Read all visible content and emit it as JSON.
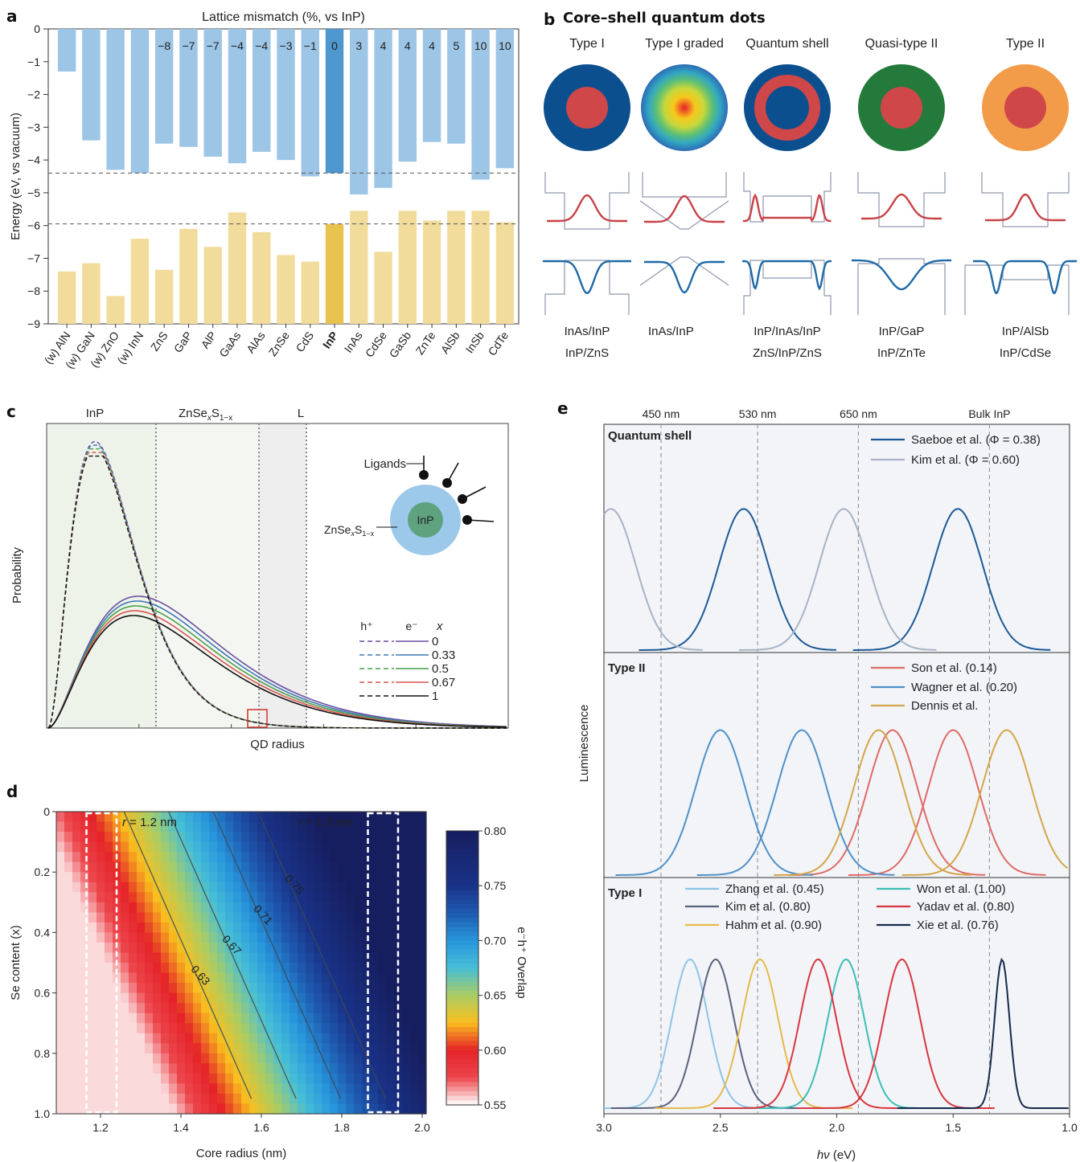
{
  "panels": {
    "a": {
      "label": "a"
    },
    "b": {
      "label": "b",
      "title": "Core–shell quantum dots"
    },
    "c": {
      "label": "c"
    },
    "d": {
      "label": "d"
    },
    "e": {
      "label": "e"
    }
  },
  "chart_data": [
    {
      "panel": "a",
      "type": "bar",
      "title": "Lattice mismatch (%, vs InP)",
      "ylabel": "Energy (eV, vs vacuum)",
      "ylim": [
        -9,
        0
      ],
      "yticks": [
        "0",
        "−1",
        "−2",
        "−3",
        "−4",
        "−5",
        "−6",
        "−7",
        "−8",
        "−9"
      ],
      "categories": [
        "(w) AlN",
        "(w) GaN",
        "(w) ZnO",
        "(w) InN",
        "ZnS",
        "GaP",
        "AlP",
        "GaAs",
        "AlAs",
        "ZnSe",
        "CdS",
        "InP",
        "InAs",
        "CdSe",
        "GaSb",
        "ZnTe",
        "AlSb",
        "InSb",
        "CdTe"
      ],
      "mismatch_labels": [
        "",
        "",
        "",
        "",
        "−8",
        "−7",
        "−7",
        "−4",
        "−4",
        "−3",
        "−1",
        "0",
        "3",
        "4",
        "4",
        "4",
        "5",
        "10",
        "10"
      ],
      "series": [
        {
          "name": "conduction band",
          "color": "#9cc5e6",
          "highlight": "#4e97cf",
          "values": [
            -1.3,
            -3.4,
            -4.3,
            -4.4,
            -3.5,
            -3.6,
            -3.9,
            -4.1,
            -3.75,
            -4.0,
            -4.5,
            -4.4,
            -5.05,
            -4.85,
            -4.05,
            -3.45,
            -3.5,
            -4.6,
            -4.25
          ]
        },
        {
          "name": "valence band",
          "color": "#f1dc9c",
          "highlight": "#e8c350",
          "values": [
            -7.4,
            -7.15,
            -8.15,
            -6.4,
            -7.35,
            -6.1,
            -6.65,
            -5.6,
            -6.2,
            -6.9,
            -7.1,
            -5.95,
            -5.55,
            -6.8,
            -5.55,
            -5.85,
            -5.55,
            -5.55,
            -5.9
          ]
        }
      ],
      "reference_lines": [
        -4.4,
        -5.95
      ],
      "highlight_category": "InP"
    },
    {
      "panel": "b",
      "type": "diagram",
      "columns": [
        {
          "title": "Type I",
          "examples": [
            "InAs/InP",
            "InP/ZnS"
          ]
        },
        {
          "title": "Type I graded",
          "examples": [
            "InAs/InP",
            ""
          ]
        },
        {
          "title": "Quantum shell",
          "examples": [
            "InP/InAs/InP",
            "ZnS/InP/ZnS"
          ]
        },
        {
          "title": "Quasi-type II",
          "examples": [
            "InP/GaP",
            "InP/ZnTe"
          ]
        },
        {
          "title": "Type II",
          "examples": [
            "InP/AlSb",
            "InP/CdSe"
          ]
        }
      ]
    },
    {
      "panel": "c",
      "type": "line",
      "xlabel": "QD radius",
      "ylabel": "Probability",
      "regions": [
        "InP",
        "ZnSe",
        "x",
        "S",
        "1−x",
        "L"
      ],
      "inset": {
        "ligands": "Ligands",
        "core": "InP",
        "shell_main": "ZnSe",
        "shell_x": "x",
        "shell_s": "S",
        "shell_sub": "1−x"
      },
      "legend": {
        "h": "h⁺",
        "e": "e⁻",
        "x": "x"
      },
      "series": [
        {
          "name": "0",
          "color": "#6b4fa0"
        },
        {
          "name": "0.33",
          "color": "#3f78b5"
        },
        {
          "name": "0.5",
          "color": "#4a9e4a"
        },
        {
          "name": "0.67",
          "color": "#d9534f"
        },
        {
          "name": "1",
          "color": "#111111"
        }
      ]
    },
    {
      "panel": "d",
      "type": "heatmap",
      "xlabel": "Core radius (nm)",
      "ylabel": "Se content (x)",
      "xticks": [
        "1.2",
        "1.4",
        "1.6",
        "1.8",
        "2.0"
      ],
      "yticks": [
        "0",
        "0.2",
        "0.4",
        "0.6",
        "0.8",
        "1.0"
      ],
      "xlim": [
        1.09,
        2.01
      ],
      "ylim": [
        0,
        1.0
      ],
      "colorbar": {
        "label": "e⁻h⁺ Overlap",
        "ticks": [
          "0.80",
          "0.75",
          "0.70",
          "0.65",
          "0.60",
          "0.55"
        ],
        "range": [
          0.55,
          0.8
        ]
      },
      "contours": [
        "0.63",
        "0.67",
        "0.71",
        "0.75"
      ],
      "annotations": [
        {
          "r": "r",
          "text": " = 1.2 nm"
        },
        {
          "r": "r",
          "text": " = 1.9 nm"
        }
      ]
    },
    {
      "panel": "e",
      "type": "line",
      "xlabel_hv": "hν",
      "xlabel_unit": " (eV)",
      "ylabel": "Luminescence",
      "xlim": [
        3.0,
        1.0
      ],
      "xticks": [
        "3.0",
        "2.5",
        "2.0",
        "1.5",
        "1.0"
      ],
      "top_marks": [
        {
          "label": "450 nm",
          "x": 2.755
        },
        {
          "label": "530 nm",
          "x": 2.34
        },
        {
          "label": "650 nm",
          "x": 1.907
        },
        {
          "label": "Bulk InP",
          "x": 1.344
        }
      ],
      "subpanels": [
        {
          "title": "Quantum shell",
          "series": [
            {
              "name": "Saeboe et al. (Φ = 0.38)",
              "color": "#1d5a96",
              "peaks": [
                2.4,
                1.48
              ]
            },
            {
              "name": "Kim et al. (Φ = 0.60)",
              "color": "#a7b3c4",
              "peaks": [
                2.97,
                1.97
              ]
            }
          ]
        },
        {
          "title": "Type II",
          "series": [
            {
              "name": "Son et al. (0.14)",
              "color": "#e06a66",
              "peaks": [
                1.76,
                1.5
              ]
            },
            {
              "name": "Wagner et al. (0.20)",
              "color": "#4f91c8",
              "peaks": [
                2.5,
                2.15
              ]
            },
            {
              "name": "Dennis et al.",
              "color": "#d4a64a",
              "peaks": [
                1.82,
                1.27
              ]
            }
          ]
        },
        {
          "title": "Type I",
          "series": [
            {
              "name": "Zhang et al. (0.45)",
              "color": "#8ec4e6",
              "peaks": [
                2.63
              ]
            },
            {
              "name": "Kim et al. (0.80)",
              "color": "#59637c",
              "peaks": [
                2.52
              ]
            },
            {
              "name": "Hahm et al. (0.90)",
              "color": "#e6b94a",
              "peaks": [
                2.33
              ]
            },
            {
              "name": "Won et al. (1.00)",
              "color": "#3dbdb4",
              "peaks": [
                1.96
              ]
            },
            {
              "name": "Yadav et al. (0.80)",
              "color": "#d8363f",
              "peaks": [
                2.08,
                1.72
              ]
            },
            {
              "name": "Xie et al. (0.76)",
              "color": "#16294a",
              "peaks": [
                1.29
              ]
            }
          ]
        }
      ]
    }
  ]
}
